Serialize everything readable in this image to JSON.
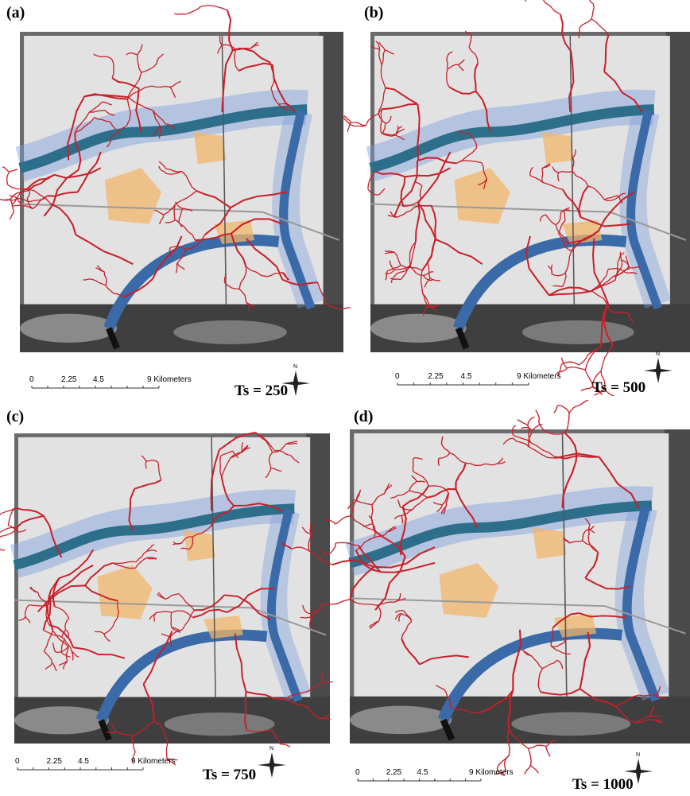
{
  "panels": [
    {
      "label": "(a)",
      "scale": [
        "0",
        "2.25",
        "4.5",
        "9 Kilometers"
      ],
      "north": "N",
      "caption": "Ts = 250"
    },
    {
      "label": "(b)",
      "scale": [
        "0",
        "2.25",
        "4.5",
        "9 Kilometers"
      ],
      "north": "N",
      "caption": "Ts = 500"
    },
    {
      "label": "(c)",
      "scale": [
        "0",
        "2.25",
        "4.5",
        "9 Kilometers"
      ],
      "north": "N",
      "caption": "Ts = 750"
    },
    {
      "label": "(d)",
      "scale": [
        "0",
        "2.25",
        "4.5",
        "9 Kilometers"
      ],
      "north": "N",
      "caption": "Ts = 1000"
    }
  ]
}
